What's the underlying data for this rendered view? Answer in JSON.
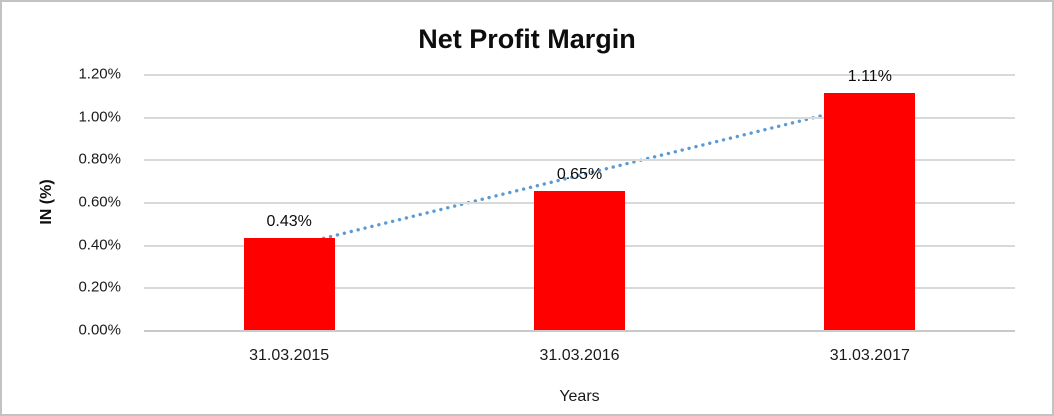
{
  "chart_data": {
    "type": "bar",
    "title": "Net Profit Margin",
    "xlabel": "Years",
    "ylabel": "IN (%)",
    "categories": [
      "31.03.2015",
      "31.03.2016",
      "31.03.2017"
    ],
    "values": [
      0.43,
      0.65,
      1.11
    ],
    "data_labels": [
      "0.43%",
      "0.65%",
      "1.11%"
    ],
    "ylim": [
      0,
      1.2
    ],
    "ytick_step": 0.2,
    "ytick_labels": [
      "0.00%",
      "0.20%",
      "0.40%",
      "0.60%",
      "0.80%",
      "1.00%",
      "1.20%"
    ],
    "grid": true,
    "legend": false,
    "bar_color": "#fe0000",
    "gridline_color": "#d9d9d9",
    "text_color": "#0d0d0d",
    "trendline": {
      "type": "linear",
      "style": "dotted",
      "color": "#5b9bd5",
      "start_value": 0.39,
      "end_value": 1.06
    }
  }
}
